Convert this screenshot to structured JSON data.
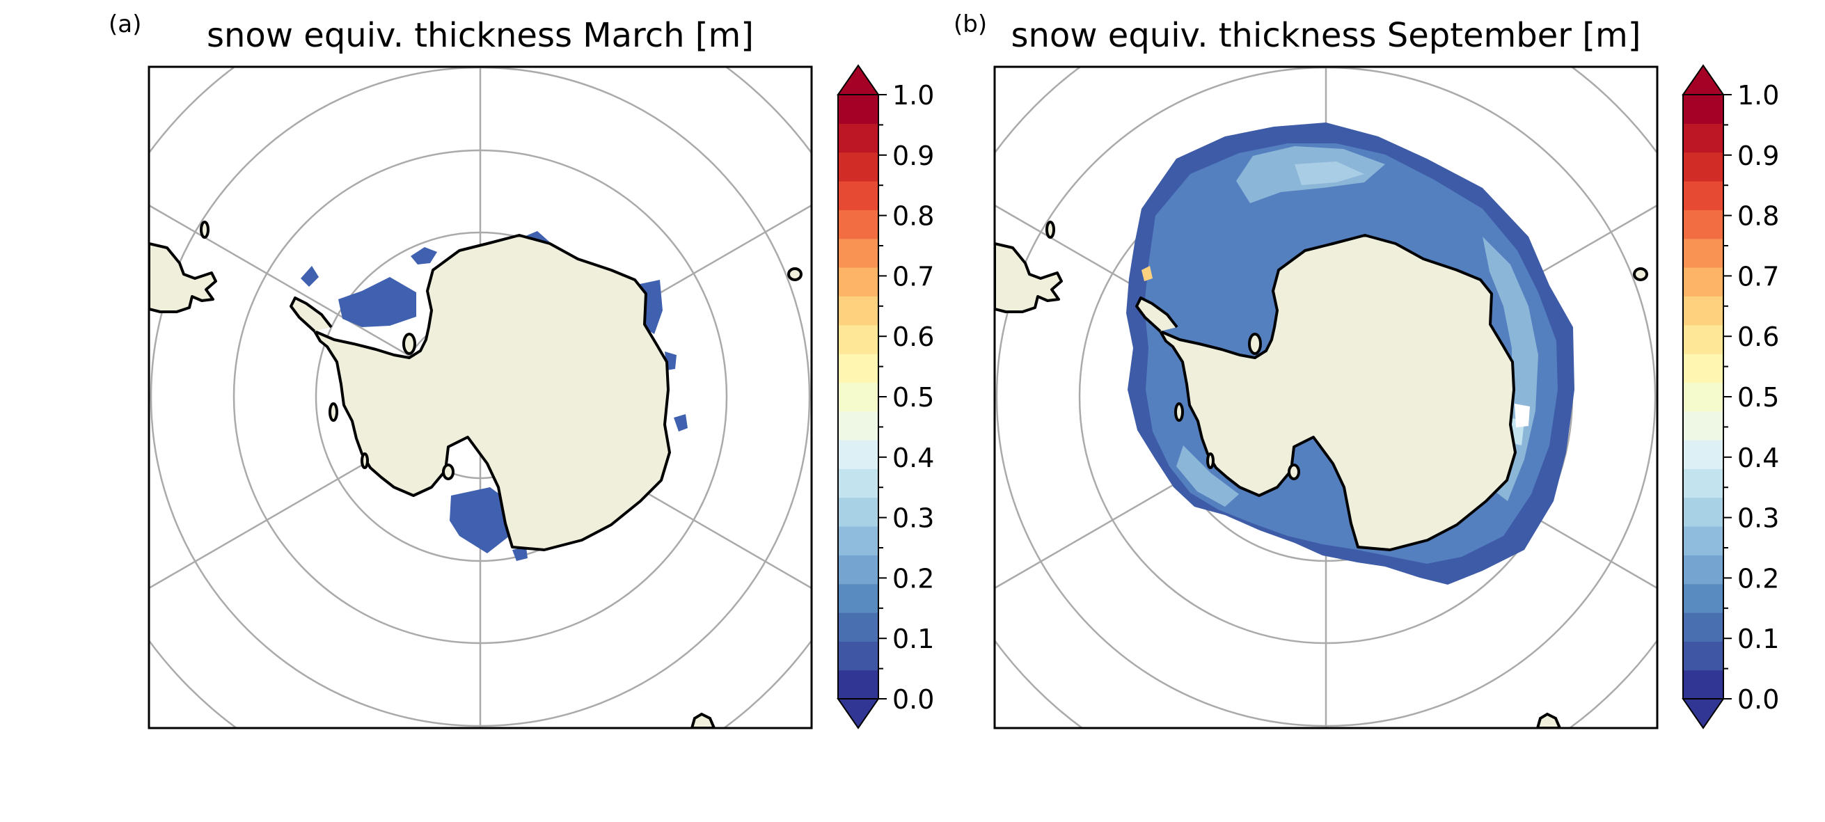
{
  "figure": {
    "panels": [
      {
        "letter": "(a)",
        "title": "snow equiv. thickness March [m]"
      },
      {
        "letter": "(b)",
        "title": "snow equiv. thickness September [m]"
      }
    ],
    "colorbar": {
      "ticks": [
        "0.0",
        "0.1",
        "0.2",
        "0.3",
        "0.4",
        "0.5",
        "0.6",
        "0.7",
        "0.8",
        "0.9",
        "1.0"
      ],
      "extend": "both",
      "colormap": "RdYlBu_r",
      "colors": [
        "#313695",
        "#3f56a4",
        "#4a6fb1",
        "#5a8bc0",
        "#74a4cf",
        "#8fbcdc",
        "#a9d1e5",
        "#c3e3ee",
        "#dcf0f5",
        "#eef8e5",
        "#f6fbcc",
        "#fff6b2",
        "#fee797",
        "#fed17f",
        "#fdb466",
        "#f99354",
        "#f36d43",
        "#e64a33",
        "#d22c27",
        "#bd1726",
        "#a50026"
      ],
      "color_under": "#313695",
      "color_over": "#a50026"
    },
    "map": {
      "projection": "South Polar Stereographic",
      "land_color": "#efefdb",
      "gridline_color": "#aaaaaa",
      "coastline_color": "#000000"
    }
  }
}
